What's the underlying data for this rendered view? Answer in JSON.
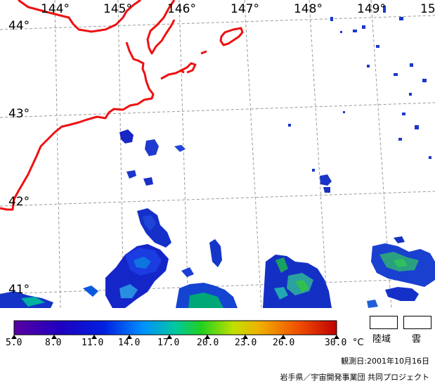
{
  "map": {
    "longitude_labels": [
      "144°",
      "145°",
      "146°",
      "147°",
      "148°",
      "149°",
      "15"
    ],
    "latitude_labels": [
      "44°",
      "43°",
      "42°",
      "41°"
    ],
    "coastline_color": "#ee1111",
    "grid_style": "dashed gray",
    "projection_note": ""
  },
  "colorbar": {
    "tick_labels": [
      "5.0",
      "8.0",
      "11.0",
      "14.0",
      "17.0",
      "20.0",
      "23.0",
      "26.0",
      "30.0"
    ],
    "unit": "°C",
    "colors": [
      "#5a00a0",
      "#0010c8",
      "#0060ff",
      "#00b0d0",
      "#00d060",
      "#b0e000",
      "#f0c000",
      "#f06000",
      "#c00000"
    ]
  },
  "legend": {
    "land_label": "陸域",
    "cloud_label": "雲"
  },
  "footer": {
    "observation_date": "観測日:2001年10月16日",
    "credit": "岩手県／宇宙開発事業団 共同プロジェクト"
  }
}
